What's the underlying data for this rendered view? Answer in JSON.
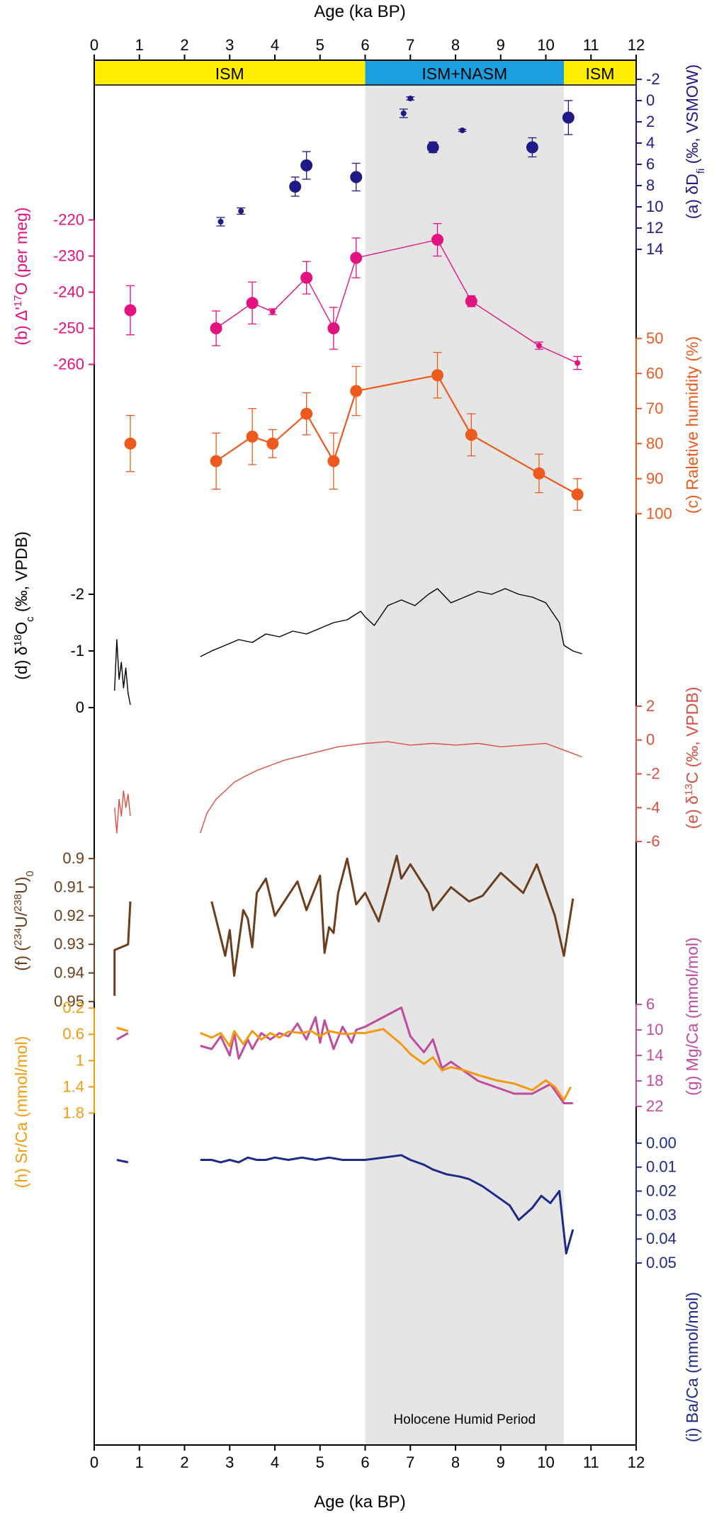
{
  "axes": {
    "top_label": "Age (ka BP)",
    "bottom_label": "Age (ka BP)",
    "x_ticks": [
      0,
      1,
      2,
      3,
      4,
      5,
      6,
      7,
      8,
      9,
      10,
      11,
      12
    ],
    "xlim": [
      0,
      12
    ]
  },
  "colors": {
    "ism_band": "#FFED00",
    "nasm_band": "#1BA1E2",
    "humid_shade": "#E5E5E5",
    "dD": "#1F1A85",
    "d17O": "#E3127E",
    "rh": "#EE5A1E",
    "d18O": "#000000",
    "d13C": "#DB4F43",
    "uratio": "#6B3E1E",
    "mgca": "#C04C9F",
    "srca": "#F39A10",
    "baca": "#1F2A86"
  },
  "monsoon_bands": [
    {
      "label": "ISM",
      "from": 0,
      "to": 6,
      "color": "#FFED00"
    },
    {
      "label": "ISM+NASM",
      "from": 6,
      "to": 10.4,
      "color": "#1BA1E2"
    },
    {
      "label": "ISM",
      "from": 10.4,
      "to": 12,
      "color": "#FFED00"
    }
  ],
  "humid_period": {
    "label": "Holocene Humid Period",
    "from": 6,
    "to": 10.4
  },
  "chart_data": [
    {
      "id": "dD",
      "type": "scatter",
      "panel": "(a)",
      "ylabel": "(a) δD_fi (‰, VSMOW)",
      "ylabel_parts": [
        "(a) δD",
        "fi",
        " (‰, VSMOW)"
      ],
      "side": "right",
      "ylim": [
        -2,
        14
      ],
      "inverted": true,
      "ticks": [
        -2,
        0,
        2,
        4,
        6,
        8,
        10,
        12,
        14
      ],
      "points": [
        {
          "x": 2.8,
          "y": 11.4,
          "err": 0.4,
          "big": false
        },
        {
          "x": 3.25,
          "y": 10.4,
          "err": 0.3,
          "big": false
        },
        {
          "x": 4.45,
          "y": 8.1,
          "err": 0.9,
          "big": true
        },
        {
          "x": 4.7,
          "y": 6.1,
          "err": 1.3,
          "big": true
        },
        {
          "x": 5.8,
          "y": 7.2,
          "err": 1.3,
          "big": true
        },
        {
          "x": 6.85,
          "y": 1.2,
          "err": 0.4,
          "big": false
        },
        {
          "x": 7.0,
          "y": -0.2,
          "err": 0.15,
          "big": false
        },
        {
          "x": 7.5,
          "y": 4.4,
          "err": 0.5,
          "big": true
        },
        {
          "x": 8.15,
          "y": 2.8,
          "err": 0.1,
          "big": false
        },
        {
          "x": 9.7,
          "y": 4.4,
          "err": 0.9,
          "big": true
        },
        {
          "x": 10.5,
          "y": 1.6,
          "err": 1.6,
          "big": true
        }
      ]
    },
    {
      "id": "d17O",
      "type": "line",
      "panel": "(b)",
      "ylabel": "(b) Δ'17O (per meg)",
      "ylabel_parts": [
        "(b) Δ'",
        "17",
        "O (per meg)"
      ],
      "side": "left",
      "ylim": [
        -265,
        -215
      ],
      "ticks": [
        -220,
        -230,
        -240,
        -250,
        -260
      ],
      "points": [
        {
          "x": 0.8,
          "y": -245,
          "err": 6.8,
          "big": true
        },
        {
          "x": 2.7,
          "y": -250,
          "err": 4.8,
          "big": true
        },
        {
          "x": 3.5,
          "y": -243,
          "err": 5.8,
          "big": true
        },
        {
          "x": 3.95,
          "y": -245.4,
          "err": 0.8,
          "big": false
        },
        {
          "x": 4.7,
          "y": -236,
          "err": 4.5,
          "big": true
        },
        {
          "x": 5.3,
          "y": -250,
          "err": 5.8,
          "big": true
        },
        {
          "x": 5.8,
          "y": -230.5,
          "err": 5.5,
          "big": true
        },
        {
          "x": 7.6,
          "y": -225.5,
          "err": 4.5,
          "big": true
        },
        {
          "x": 8.35,
          "y": -242.5,
          "err": 1.5,
          "big": true
        },
        {
          "x": 9.85,
          "y": -254.8,
          "err": 1.0,
          "big": false
        },
        {
          "x": 10.7,
          "y": -259.6,
          "err": 1.8,
          "big": false
        }
      ],
      "line_from_index": 1
    },
    {
      "id": "rh",
      "type": "line",
      "panel": "(c)",
      "ylabel": "(c) Raletive humidity (%)",
      "side": "right",
      "ylim": [
        45,
        105
      ],
      "inverted": true,
      "ticks": [
        50,
        60,
        70,
        80,
        90,
        100
      ],
      "points": [
        {
          "x": 0.8,
          "y": 80,
          "err": 8,
          "big": true
        },
        {
          "x": 2.7,
          "y": 85,
          "err": 8,
          "big": true
        },
        {
          "x": 3.5,
          "y": 78,
          "err": 8,
          "big": true
        },
        {
          "x": 3.95,
          "y": 80,
          "err": 4,
          "big": true
        },
        {
          "x": 4.7,
          "y": 71.5,
          "err": 6,
          "big": true
        },
        {
          "x": 5.3,
          "y": 85,
          "err": 8,
          "big": true
        },
        {
          "x": 5.8,
          "y": 65,
          "err": 7,
          "big": true
        },
        {
          "x": 7.6,
          "y": 60.5,
          "err": 6.5,
          "big": true
        },
        {
          "x": 8.35,
          "y": 77.5,
          "err": 6,
          "big": true
        },
        {
          "x": 9.85,
          "y": 88.5,
          "err": 5.5,
          "big": true
        },
        {
          "x": 10.7,
          "y": 94.5,
          "err": 4.5,
          "big": true
        }
      ],
      "line_from_index": 1
    },
    {
      "id": "d18O",
      "type": "line",
      "panel": "(d)",
      "ylabel": "(d) δ18O_c (‰, VPDB)",
      "ylabel_parts": [
        "(d) δ",
        "18",
        "O",
        "c",
        " (‰, VPDB)"
      ],
      "side": "left",
      "ylim": [
        -2.8,
        0.2
      ],
      "inverted": true,
      "ticks": [
        -2,
        -1,
        0
      ],
      "segments": [
        {
          "x": [
            0.45,
            0.5,
            0.55,
            0.6,
            0.65,
            0.7,
            0.75,
            0.8
          ],
          "y": [
            -0.3,
            -1.2,
            -0.5,
            -0.8,
            -0.35,
            -0.7,
            -0.25,
            -0.05
          ]
        },
        {
          "x": [
            2.35,
            2.6,
            2.9,
            3.2,
            3.5,
            3.8,
            4.1,
            4.4,
            4.7,
            5.0,
            5.3,
            5.6,
            5.9,
            6.0,
            6.2,
            6.5,
            6.8,
            7.1,
            7.4,
            7.6,
            7.9,
            8.2,
            8.5,
            8.8,
            9.1,
            9.4,
            9.7,
            10.0,
            10.3,
            10.4,
            10.6,
            10.8
          ],
          "y": [
            -0.9,
            -1.0,
            -1.1,
            -1.2,
            -1.15,
            -1.3,
            -1.25,
            -1.35,
            -1.3,
            -1.4,
            -1.5,
            -1.55,
            -1.7,
            -1.6,
            -1.45,
            -1.8,
            -1.9,
            -1.8,
            -2.0,
            -2.1,
            -1.85,
            -1.95,
            -2.05,
            -2.0,
            -2.1,
            -2.0,
            -1.95,
            -1.85,
            -1.5,
            -1.1,
            -1.0,
            -0.95
          ]
        }
      ]
    },
    {
      "id": "d13C",
      "type": "line",
      "panel": "(e)",
      "ylabel": "(e) δ13C (‰, VPDB)",
      "ylabel_parts": [
        "(e) δ",
        "13",
        "C (‰, VPDB)"
      ],
      "side": "right",
      "ylim": [
        -6.5,
        2.5
      ],
      "ticks": [
        2,
        0,
        -2,
        -4,
        -6
      ],
      "segments": [
        {
          "x": [
            0.45,
            0.5,
            0.55,
            0.6,
            0.65,
            0.7,
            0.75,
            0.8
          ],
          "y": [
            -4.0,
            -5.5,
            -3.5,
            -4.5,
            -3.0,
            -4.0,
            -3.2,
            -4.5
          ]
        },
        {
          "x": [
            2.35,
            2.5,
            2.7,
            2.9,
            3.1,
            3.3,
            3.6,
            3.9,
            4.2,
            4.5,
            4.8,
            5.1,
            5.4,
            5.7,
            6.0,
            6.5,
            7.0,
            7.5,
            8.0,
            8.5,
            9.0,
            9.5,
            10.0,
            10.3,
            10.6,
            10.8
          ],
          "y": [
            -5.5,
            -4.3,
            -3.5,
            -3.0,
            -2.5,
            -2.2,
            -1.8,
            -1.5,
            -1.2,
            -1.0,
            -0.8,
            -0.6,
            -0.4,
            -0.3,
            -0.2,
            -0.1,
            -0.3,
            -0.2,
            -0.3,
            -0.2,
            -0.4,
            -0.3,
            -0.2,
            -0.5,
            -0.8,
            -1.0
          ]
        }
      ]
    },
    {
      "id": "uratio",
      "type": "line",
      "panel": "(f)",
      "ylabel": "(f) (234U/238U)0",
      "ylabel_parts": [
        "(f) (",
        "234",
        "U/",
        "238",
        "U)",
        "0"
      ],
      "side": "left",
      "ylim": [
        0.897,
        0.951
      ],
      "inverted": true,
      "ticks": [
        0.9,
        0.91,
        0.92,
        0.93,
        0.94,
        0.95
      ],
      "segments": [
        {
          "x": [
            0.45,
            0.45,
            0.75,
            0.8
          ],
          "y": [
            0.948,
            0.932,
            0.93,
            0.915
          ]
        },
        {
          "x": [
            2.6,
            2.9,
            3.0,
            3.1,
            3.3,
            3.4,
            3.5,
            3.6,
            3.8,
            4.0,
            4.5,
            4.7,
            5.0,
            5.1,
            5.2,
            5.3,
            5.4,
            5.6,
            5.7,
            5.8,
            6.0,
            6.3,
            6.7,
            6.8,
            7.0,
            7.4,
            7.5,
            7.9,
            8.3,
            8.6,
            9.0,
            9.5,
            9.8,
            10.2,
            10.4,
            10.6
          ],
          "y": [
            0.915,
            0.934,
            0.925,
            0.941,
            0.918,
            0.921,
            0.931,
            0.912,
            0.907,
            0.92,
            0.908,
            0.918,
            0.906,
            0.933,
            0.924,
            0.926,
            0.912,
            0.9,
            0.908,
            0.916,
            0.912,
            0.922,
            0.899,
            0.907,
            0.902,
            0.912,
            0.918,
            0.91,
            0.915,
            0.913,
            0.905,
            0.912,
            0.902,
            0.92,
            0.934,
            0.914
          ]
        }
      ]
    },
    {
      "id": "mgca",
      "type": "line",
      "panel": "(g)",
      "ylabel": "(g) Mg/Ca (mmol/mol)",
      "side": "right",
      "ylim": [
        4,
        24
      ],
      "inverted": true,
      "ticks": [
        6,
        10,
        14,
        18,
        22
      ],
      "segments": [
        {
          "x": [
            0.5,
            0.75
          ],
          "y": [
            11.5,
            10.5
          ]
        },
        {
          "x": [
            2.35,
            2.6,
            2.8,
            3.0,
            3.1,
            3.2,
            3.4,
            3.5,
            3.7,
            3.9,
            4.1,
            4.3,
            4.5,
            4.7,
            4.9,
            5.0,
            5.1,
            5.3,
            5.5,
            5.7,
            5.8,
            6.0,
            6.4,
            6.8,
            7.0,
            7.3,
            7.5,
            7.7,
            7.9,
            8.2,
            8.5,
            8.9,
            9.3,
            9.7,
            10.1,
            10.4,
            10.6
          ],
          "y": [
            12.5,
            13.0,
            11.0,
            14.0,
            10.5,
            14.5,
            11.5,
            13.0,
            10.5,
            11.5,
            10.5,
            11.0,
            9.0,
            11.5,
            8.0,
            12.0,
            8.5,
            13.0,
            9.5,
            12.0,
            10.0,
            9.5,
            8.0,
            6.5,
            11.0,
            13.5,
            11.5,
            16.0,
            15.0,
            16.5,
            18.0,
            19.0,
            20.0,
            20.0,
            18.5,
            21.5,
            21.5
          ]
        }
      ]
    },
    {
      "id": "srca",
      "type": "line",
      "panel": "(h)",
      "ylabel": "(h) Sr/Ca (mmol/mol)",
      "side": "left",
      "ylim": [
        -0.05,
        2.0
      ],
      "inverted": true,
      "ticks": [
        0.2,
        0.6,
        1.0,
        1.4,
        1.8
      ],
      "segments": [
        {
          "x": [
            0.5,
            0.75
          ],
          "y": [
            0.5,
            0.55
          ]
        },
        {
          "x": [
            2.35,
            2.6,
            2.8,
            3.0,
            3.1,
            3.3,
            3.5,
            3.7,
            3.9,
            4.1,
            4.3,
            4.6,
            4.8,
            5.0,
            5.2,
            5.4,
            5.6,
            5.8,
            6.0,
            6.4,
            6.8,
            7.0,
            7.3,
            7.5,
            7.7,
            7.9,
            8.2,
            8.5,
            8.9,
            9.3,
            9.7,
            10.0,
            10.2,
            10.4,
            10.55
          ],
          "y": [
            0.58,
            0.65,
            0.58,
            0.78,
            0.55,
            0.75,
            0.55,
            0.68,
            0.58,
            0.65,
            0.56,
            0.58,
            0.55,
            0.63,
            0.55,
            0.58,
            0.6,
            0.58,
            0.58,
            0.52,
            0.75,
            0.9,
            1.05,
            0.95,
            1.15,
            1.1,
            1.15,
            1.22,
            1.3,
            1.35,
            1.45,
            1.3,
            1.4,
            1.6,
            1.4
          ]
        }
      ]
    },
    {
      "id": "baca",
      "type": "line",
      "panel": "(i)",
      "ylabel": "(i) Ba/Ca (mmol/mol)",
      "side": "right",
      "ylim": [
        -0.01,
        0.055
      ],
      "inverted": true,
      "ticks": [
        "0.00",
        "0.01",
        "0.02",
        "0.03",
        "0.04",
        "0.05"
      ],
      "tick_values": [
        0.0,
        0.01,
        0.02,
        0.03,
        0.04,
        0.05
      ],
      "segments": [
        {
          "x": [
            0.5,
            0.75
          ],
          "y": [
            0.007,
            0.008
          ]
        },
        {
          "x": [
            2.35,
            2.6,
            2.8,
            3.0,
            3.2,
            3.4,
            3.6,
            3.8,
            4.0,
            4.3,
            4.6,
            4.9,
            5.2,
            5.5,
            5.8,
            6.0,
            6.4,
            6.8,
            7.0,
            7.3,
            7.5,
            7.8,
            8.1,
            8.3,
            8.6,
            8.9,
            9.2,
            9.4,
            9.7,
            9.9,
            10.1,
            10.3,
            10.45,
            10.6
          ],
          "y": [
            0.007,
            0.007,
            0.008,
            0.007,
            0.008,
            0.006,
            0.007,
            0.007,
            0.006,
            0.007,
            0.006,
            0.007,
            0.006,
            0.007,
            0.007,
            0.007,
            0.006,
            0.005,
            0.007,
            0.009,
            0.011,
            0.013,
            0.014,
            0.015,
            0.018,
            0.022,
            0.026,
            0.032,
            0.027,
            0.022,
            0.025,
            0.02,
            0.046,
            0.036
          ]
        }
      ]
    }
  ]
}
